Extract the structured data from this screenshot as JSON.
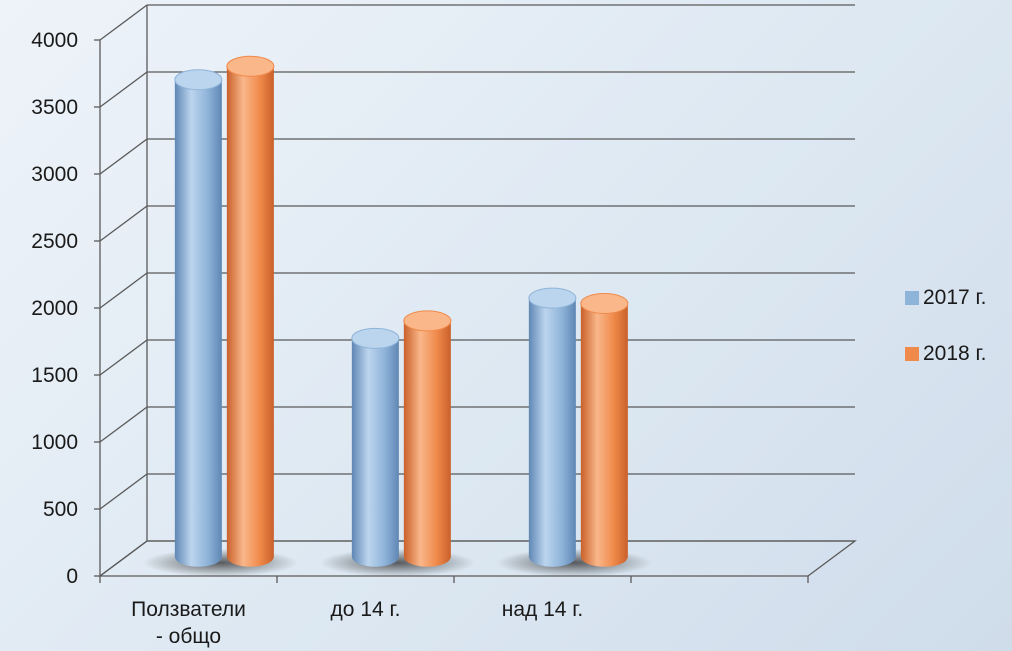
{
  "chart_data": {
    "type": "bar",
    "style": "3d-cylinder",
    "categories": [
      [
        "Ползватели",
        "- общо"
      ],
      [
        "до 14 г."
      ],
      [
        "над 14 г."
      ],
      [
        ""
      ]
    ],
    "series": [
      {
        "name": "2017 г.",
        "values": [
          3560,
          1630,
          1930,
          null
        ]
      },
      {
        "name": "2018 г.",
        "values": [
          3660,
          1760,
          1890,
          null
        ]
      }
    ],
    "ylim": [
      0,
      4000
    ],
    "yticks": [
      0,
      500,
      1000,
      1500,
      2000,
      2500,
      3000,
      3500,
      4000
    ],
    "title": "",
    "xlabel": "",
    "ylabel": "",
    "grid": true,
    "legend_position": "right",
    "colors": {
      "series": [
        "#8fb4d9",
        "#f08a4b"
      ],
      "series_dark": [
        "#5f87b4",
        "#c9602a"
      ],
      "series_light": [
        "#bcd5ee",
        "#f9b78a"
      ],
      "grid": "#5a5a5a"
    }
  }
}
